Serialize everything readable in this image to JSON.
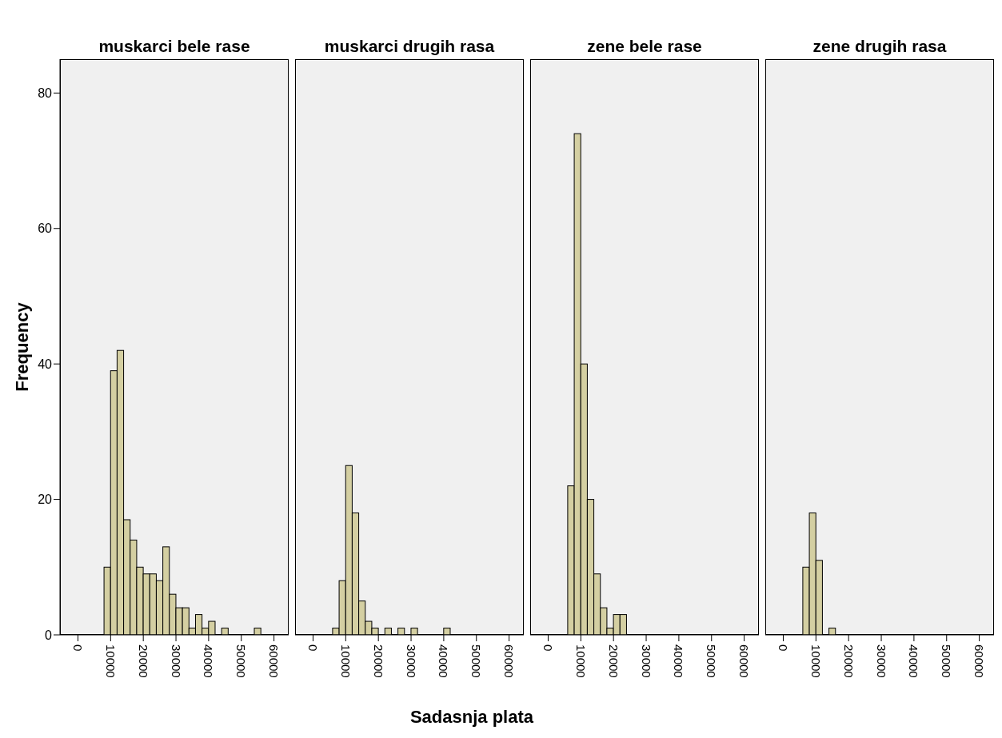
{
  "chart_data": [
    {
      "type": "histogram",
      "title": "muskarci bele rase",
      "ylabel": "Frequency",
      "color": "#d4cfa2",
      "bins": [
        6000,
        8000,
        10000,
        12000,
        14000,
        16000,
        18000,
        20000,
        22000,
        24000,
        26000,
        28000,
        30000,
        32000,
        34000,
        36000,
        38000,
        40000,
        42000,
        44000,
        46000,
        48000,
        50000,
        52000,
        54000,
        56000
      ],
      "values": [
        0,
        10,
        39,
        42,
        17,
        14,
        10,
        9,
        9,
        8,
        13,
        6,
        4,
        4,
        1,
        3,
        1,
        2,
        0,
        1,
        0,
        0,
        0,
        0,
        1
      ],
      "xlim": [
        -5500,
        64500
      ],
      "xticks": [
        0,
        10000,
        20000,
        30000,
        40000,
        50000,
        60000
      ],
      "ylim": [
        0,
        85
      ],
      "yticks": [
        0,
        20,
        40,
        60,
        80
      ]
    },
    {
      "type": "histogram",
      "title": "muskarci drugih rasa",
      "xlabel": "Sadasnja plata",
      "color": "#d4cfa2",
      "tick_labels": "x",
      "bins": [
        6000,
        8000,
        10000,
        12000,
        14000,
        16000,
        18000,
        20000,
        22000,
        24000,
        26000,
        28000,
        30000,
        32000,
        34000,
        36000,
        38000,
        40000,
        42000,
        44000,
        46000,
        48000,
        50000,
        52000,
        54000,
        56000
      ],
      "values": [
        1,
        8,
        25,
        18,
        5,
        2,
        1,
        0,
        1,
        0,
        1,
        0,
        1,
        0,
        0,
        0,
        0,
        1,
        0,
        0,
        0,
        0,
        0,
        0,
        0
      ],
      "xlim": [
        -5500,
        64500
      ],
      "xticks": [
        0,
        10000,
        20000,
        30000,
        40000,
        50000,
        60000
      ],
      "ylim": [
        0,
        85
      ],
      "yticks": [
        0,
        20,
        40,
        60,
        80
      ]
    },
    {
      "type": "histogram",
      "title": "zene bele rase",
      "color": "#d4cfa2",
      "tick_labels": "x",
      "bins": [
        6000,
        8000,
        10000,
        12000,
        14000,
        16000,
        18000,
        20000,
        22000,
        24000,
        26000,
        28000,
        30000,
        32000,
        34000,
        36000,
        38000,
        40000,
        42000,
        44000,
        46000,
        48000,
        50000,
        52000,
        54000,
        56000
      ],
      "values": [
        22,
        74,
        40,
        20,
        9,
        4,
        1,
        3,
        3,
        0,
        0,
        0,
        0,
        0,
        0,
        0,
        0,
        0,
        0,
        0,
        0,
        0,
        0,
        0,
        0
      ],
      "xlim": [
        -5500,
        64500
      ],
      "xticks": [
        0,
        10000,
        20000,
        30000,
        40000,
        50000,
        60000
      ],
      "ylim": [
        0,
        85
      ],
      "yticks": [
        0,
        20,
        40,
        60,
        80
      ]
    },
    {
      "type": "histogram",
      "title": "zene drugih rasa",
      "color": "#d4cfa2",
      "tick_labels": "x",
      "bins": [
        6000,
        8000,
        10000,
        12000,
        14000,
        16000,
        18000,
        20000,
        22000,
        24000,
        26000,
        28000,
        30000,
        32000,
        34000,
        36000,
        38000,
        40000,
        42000,
        44000,
        46000,
        48000,
        50000,
        52000,
        54000,
        56000
      ],
      "values": [
        10,
        18,
        11,
        0,
        1,
        0,
        0,
        0,
        0,
        0,
        0,
        0,
        0,
        0,
        0,
        0,
        0,
        0,
        0,
        0,
        0,
        0,
        0,
        0,
        0
      ],
      "xlim": [
        -5500,
        64500
      ],
      "xticks": [
        0,
        10000,
        20000,
        30000,
        40000,
        50000,
        60000
      ],
      "ylim": [
        0,
        85
      ],
      "yticks": [
        0,
        20,
        40,
        60,
        80
      ]
    }
  ]
}
